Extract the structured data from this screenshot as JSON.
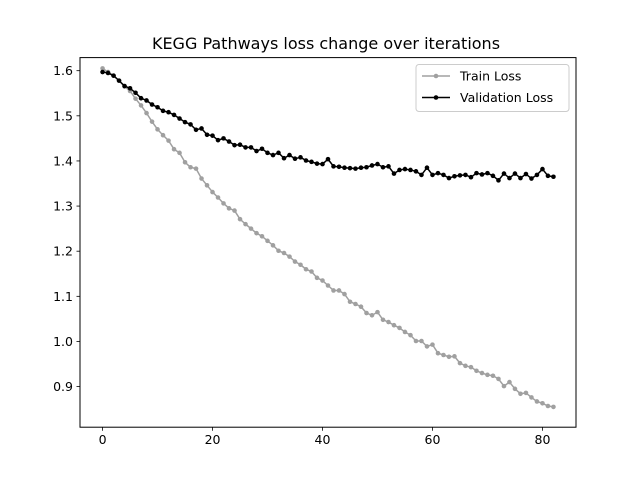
{
  "chart_data": {
    "type": "line",
    "title": "KEGG Pathways loss change over iterations",
    "xlabel": "",
    "ylabel": "",
    "xlim": [
      -4.1,
      86.1
    ],
    "ylim": [
      0.81,
      1.629
    ],
    "xticks": [
      0,
      20,
      40,
      60,
      80
    ],
    "yticks": [
      0.9,
      1.0,
      1.1,
      1.2,
      1.3,
      1.4,
      1.5,
      1.6
    ],
    "legend": "top-right",
    "grid": false,
    "series": [
      {
        "name": "Train Loss",
        "color": "#a0a0a0",
        "marker": "circle",
        "values": [
          1.605,
          1.597,
          1.589,
          1.578,
          1.565,
          1.555,
          1.538,
          1.523,
          1.506,
          1.487,
          1.47,
          1.457,
          1.445,
          1.426,
          1.418,
          1.397,
          1.386,
          1.383,
          1.361,
          1.346,
          1.331,
          1.319,
          1.306,
          1.295,
          1.29,
          1.271,
          1.26,
          1.25,
          1.24,
          1.233,
          1.223,
          1.213,
          1.201,
          1.196,
          1.188,
          1.177,
          1.17,
          1.16,
          1.155,
          1.141,
          1.135,
          1.124,
          1.113,
          1.113,
          1.105,
          1.088,
          1.083,
          1.077,
          1.063,
          1.058,
          1.065,
          1.048,
          1.043,
          1.036,
          1.03,
          1.021,
          1.014,
          1.001,
          1.001,
          0.989,
          0.993,
          0.974,
          0.97,
          0.966,
          0.967,
          0.952,
          0.946,
          0.943,
          0.935,
          0.93,
          0.926,
          0.924,
          0.917,
          0.901,
          0.91,
          0.895,
          0.884,
          0.886,
          0.876,
          0.867,
          0.863,
          0.857,
          0.855
        ]
      },
      {
        "name": "Validation Loss",
        "color": "#000000",
        "marker": "circle",
        "values": [
          1.597,
          1.595,
          1.589,
          1.578,
          1.566,
          1.561,
          1.551,
          1.539,
          1.534,
          1.525,
          1.519,
          1.511,
          1.508,
          1.502,
          1.494,
          1.486,
          1.481,
          1.469,
          1.472,
          1.458,
          1.456,
          1.446,
          1.45,
          1.443,
          1.435,
          1.436,
          1.43,
          1.43,
          1.422,
          1.427,
          1.418,
          1.413,
          1.418,
          1.406,
          1.413,
          1.405,
          1.408,
          1.401,
          1.398,
          1.394,
          1.393,
          1.404,
          1.388,
          1.387,
          1.385,
          1.384,
          1.383,
          1.385,
          1.386,
          1.39,
          1.393,
          1.386,
          1.388,
          1.372,
          1.38,
          1.382,
          1.38,
          1.377,
          1.369,
          1.385,
          1.369,
          1.373,
          1.369,
          1.362,
          1.366,
          1.368,
          1.369,
          1.364,
          1.373,
          1.37,
          1.373,
          1.367,
          1.357,
          1.372,
          1.362,
          1.372,
          1.362,
          1.371,
          1.361,
          1.369,
          1.382,
          1.367,
          1.365
        ]
      }
    ]
  }
}
